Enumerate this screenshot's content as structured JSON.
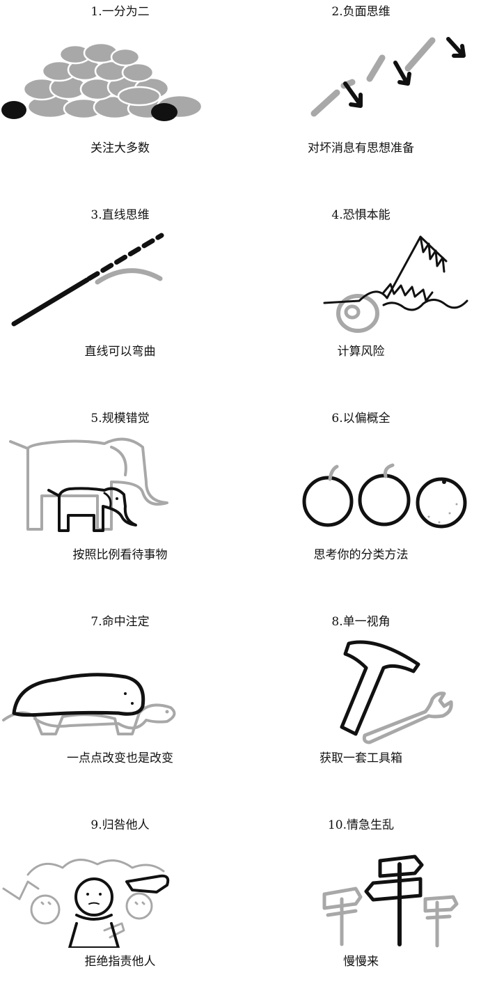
{
  "panels": [
    {
      "title": "1.一分为二",
      "caption": "关注大多数"
    },
    {
      "title": "2.负面思维",
      "caption": "对坏消息有思想准备"
    },
    {
      "title": "3.直线思维",
      "caption": "直线可以弯曲"
    },
    {
      "title": "4.恐惧本能",
      "caption": "计算风险"
    },
    {
      "title": "5.规模错觉",
      "caption": "按照比例看待事物"
    },
    {
      "title": "6.以偏概全",
      "caption": "思考你的分类方法"
    },
    {
      "title": "7.命中注定",
      "caption": "一点点改变也是改变"
    },
    {
      "title": "8.单一视角",
      "caption": "获取一套工具箱"
    },
    {
      "title": "9.归咎他人",
      "caption": "拒绝指责他人"
    },
    {
      "title": "10.情急生乱",
      "caption": "慢慢来"
    }
  ],
  "colors": {
    "ink": "#111111",
    "gray": "#a8a8a8"
  }
}
